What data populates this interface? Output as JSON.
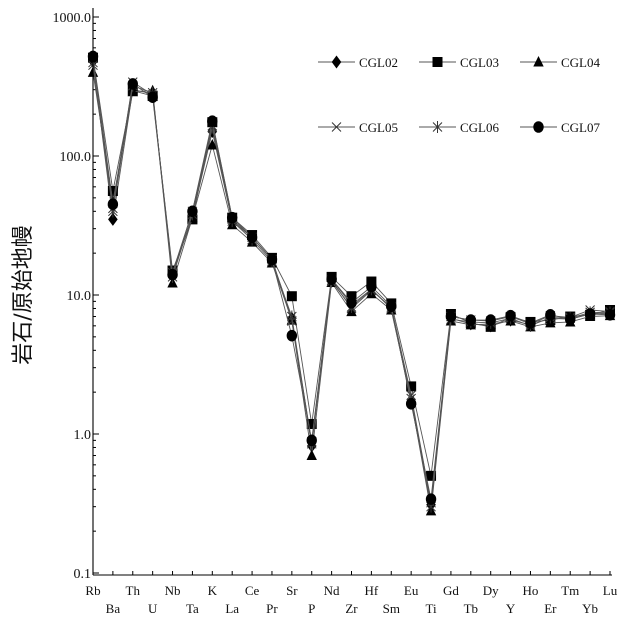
{
  "chart_data": {
    "type": "line",
    "title": "",
    "xlabel": "",
    "ylabel": "岩石/原始地幔",
    "yscale": "log",
    "ylim": [
      0.1,
      1000
    ],
    "yticks": [
      0.1,
      1,
      10,
      100,
      1000
    ],
    "ytick_labels": [
      "0.1",
      "1.0",
      "10.0",
      "100.0",
      "1000.0"
    ],
    "grid": false,
    "legend": "top-right",
    "line_color": "#555555",
    "marker_color": "#000000",
    "categories": [
      "Rb",
      "Ba",
      "Th",
      "U",
      "Nb",
      "Ta",
      "K",
      "La",
      "Ce",
      "Pr",
      "Sr",
      "P",
      "Nd",
      "Zr",
      "Hf",
      "Sm",
      "Eu",
      "Ti",
      "Gd",
      "Tb",
      "Dy",
      "Y",
      "Ho",
      "Er",
      "Tm",
      "Yb",
      "Lu"
    ],
    "series": [
      {
        "name": "CGL02",
        "marker": "diamond",
        "values": [
          480,
          35,
          300,
          280,
          14,
          37,
          150,
          34,
          26,
          18,
          6.8,
          0.82,
          13,
          8.5,
          11,
          8.0,
          1.7,
          0.31,
          6.8,
          6.2,
          6.0,
          6.6,
          6.1,
          6.8,
          6.7,
          7.3,
          7.4
        ]
      },
      {
        "name": "CGL03",
        "marker": "square",
        "values": [
          510,
          56,
          295,
          270,
          15,
          35,
          175,
          36,
          27,
          18.5,
          9.8,
          1.18,
          13.5,
          9.8,
          12.5,
          8.7,
          2.2,
          0.5,
          7.3,
          6.3,
          5.9,
          6.9,
          6.4,
          6.6,
          7.0,
          7.2,
          7.8
        ]
      },
      {
        "name": "CGL04",
        "marker": "triangle",
        "values": [
          400,
          47,
          290,
          295,
          12.2,
          36,
          120,
          32,
          24,
          17,
          6.6,
          0.7,
          12.3,
          7.6,
          10.2,
          7.8,
          1.75,
          0.28,
          6.5,
          6.1,
          6.2,
          6.5,
          5.9,
          6.3,
          6.4,
          7.0,
          7.1
        ]
      },
      {
        "name": "CGL05",
        "marker": "cross",
        "values": [
          470,
          42,
          340,
          275,
          14.5,
          40,
          165,
          35,
          26,
          18,
          6.5,
          0.88,
          12.8,
          8.0,
          10.8,
          8.2,
          1.9,
          0.32,
          7.0,
          6.6,
          6.5,
          7.0,
          6.2,
          7.1,
          6.9,
          7.8,
          7.6
        ]
      },
      {
        "name": "CGL06",
        "marker": "asterisk",
        "values": [
          450,
          40,
          320,
          285,
          13.5,
          38,
          160,
          34,
          25,
          17.5,
          7.0,
          0.85,
          12.5,
          8.2,
          11,
          8.0,
          1.8,
          0.3,
          6.7,
          6.4,
          6.3,
          6.8,
          6.0,
          6.9,
          6.8,
          7.5,
          7.5
        ]
      },
      {
        "name": "CGL07",
        "marker": "circle",
        "values": [
          520,
          45,
          330,
          265,
          14,
          40,
          178,
          36,
          26,
          18,
          5.1,
          0.9,
          13,
          8.8,
          11.5,
          8.3,
          1.65,
          0.34,
          7.0,
          6.6,
          6.6,
          7.1,
          6.3,
          7.2,
          6.7,
          7.3,
          7.2
        ]
      }
    ]
  }
}
